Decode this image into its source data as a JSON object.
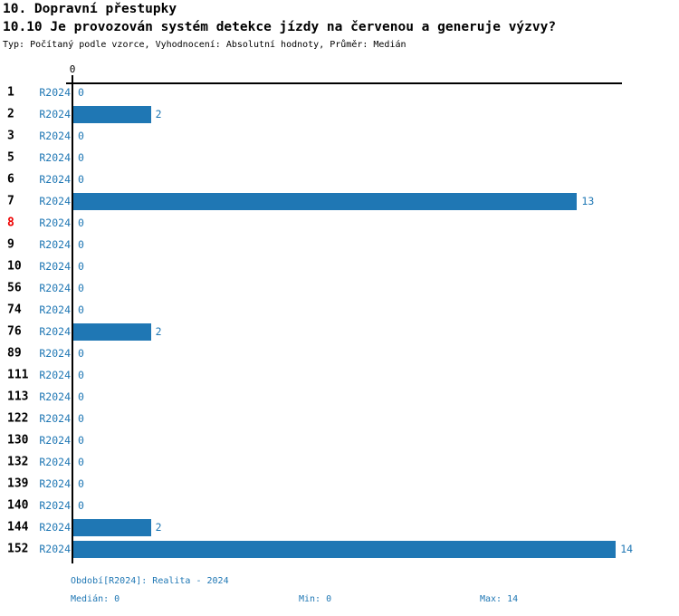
{
  "page": {
    "title": "10. Dopravní přestupky",
    "subtitle": "10.10 Je provozován systém detekce jízdy na červenou a generuje výzvy?",
    "meta": "Typ: Počítaný podle vzorce, Vyhodnocení: Absolutní hodnoty, Průměr: Medián"
  },
  "axis": {
    "zero_label": "0"
  },
  "chart_data": {
    "type": "bar",
    "orientation": "horizontal",
    "title": "10.10 Je provozován systém detekce jízdy na červenou a generuje výzvy?",
    "categories": [
      "1",
      "2",
      "3",
      "5",
      "6",
      "7",
      "8",
      "9",
      "10",
      "56",
      "74",
      "76",
      "89",
      "111",
      "113",
      "122",
      "130",
      "132",
      "139",
      "140",
      "144",
      "152"
    ],
    "series": [
      {
        "name": "R2024",
        "values": [
          0,
          2,
          0,
          0,
          0,
          13,
          0,
          0,
          0,
          0,
          0,
          2,
          0,
          0,
          0,
          0,
          0,
          0,
          0,
          0,
          2,
          14
        ]
      }
    ],
    "row_period_label": "R2024",
    "highlighted_categories": [
      "8"
    ],
    "xlim": [
      0,
      14.2
    ],
    "value_labels_shown": true,
    "legend": "none",
    "grid": "off"
  },
  "colors": {
    "bar": "#1f77b4",
    "blue_text": "#1f77b4",
    "highlight_red": "#ee0000",
    "axis": "#000000"
  },
  "footer": {
    "period_info": "Období[R2024]: Realita - 2024",
    "median": "Medián: 0",
    "min": "Min: 0",
    "max": "Max: 14"
  }
}
